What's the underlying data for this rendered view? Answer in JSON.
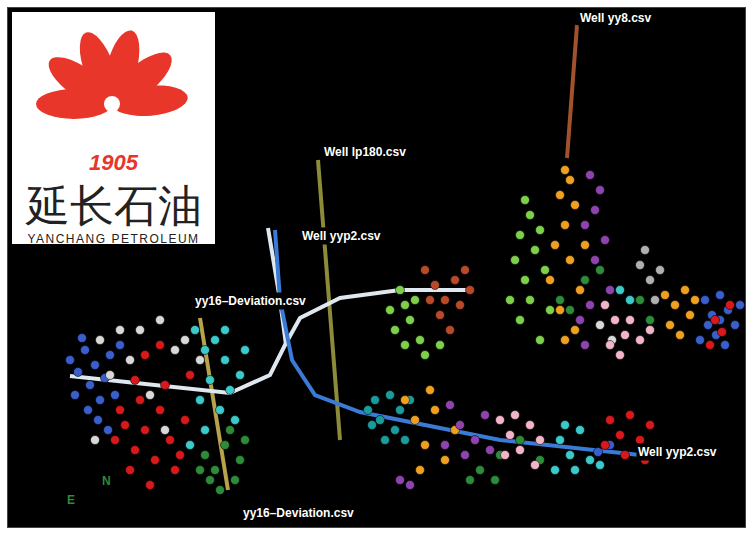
{
  "chart_data": {
    "type": "scatter",
    "xlim": [
      8,
      745
    ],
    "ylim": [
      527,
      8
    ],
    "tick_labels": false,
    "grid": false,
    "marker": "circle",
    "series": [
      {
        "type": "scatter",
        "color": "#3a5fcd",
        "x": [
          70,
          78,
          85,
          90,
          95,
          100,
          105,
          110,
          88,
          98,
          115,
          75,
          120,
          108,
          82,
          705,
          712,
          720,
          728,
          735,
          716,
          725,
          708,
          740,
          700,
          720,
          598,
          610
        ],
        "y": [
          360,
          372,
          350,
          385,
          365,
          400,
          378,
          355,
          410,
          420,
          395,
          395,
          345,
          430,
          338,
          300,
          315,
          295,
          310,
          325,
          335,
          345,
          325,
          305,
          340,
          320,
          452,
          445
        ]
      },
      {
        "type": "scatter",
        "color": "#d7191c",
        "x": [
          115,
          125,
          135,
          145,
          155,
          160,
          170,
          130,
          150,
          140,
          175,
          165,
          185,
          120,
          180,
          145,
          160,
          190,
          135,
          715,
          722,
          710,
          730,
          610,
          620,
          630,
          640,
          625,
          650,
          605,
          645
        ],
        "y": [
          440,
          425,
          450,
          430,
          460,
          410,
          440,
          470,
          485,
          400,
          470,
          385,
          420,
          410,
          455,
          355,
          345,
          375,
          380,
          320,
          332,
          345,
          305,
          420,
          435,
          415,
          440,
          455,
          425,
          445,
          460
        ]
      },
      {
        "type": "scatter",
        "color": "#d8d8d8",
        "x": [
          100,
          120,
          140,
          160,
          130,
          175,
          110,
          150,
          185,
          200,
          95,
          165,
          600,
          612
        ],
        "y": [
          340,
          330,
          330,
          320,
          360,
          350,
          375,
          395,
          340,
          360,
          440,
          430,
          325,
          340
        ]
      },
      {
        "type": "scatter",
        "color": "#3cc9c9",
        "x": [
          195,
          205,
          215,
          225,
          210,
          230,
          240,
          200,
          220,
          235,
          190,
          245,
          225,
          205,
          560,
          570,
          580,
          590,
          575,
          600,
          555,
          565,
          620,
          630
        ],
        "y": [
          330,
          350,
          340,
          360,
          380,
          390,
          375,
          400,
          410,
          420,
          445,
          350,
          330,
          430,
          440,
          455,
          430,
          460,
          470,
          465,
          470,
          425,
          290,
          300
        ]
      },
      {
        "type": "scatter",
        "color": "#1a9c9c",
        "x": [
          368,
          375,
          380,
          390,
          395,
          385,
          372,
          400,
          405,
          410
        ],
        "y": [
          410,
          400,
          420,
          395,
          430,
          440,
          425,
          410,
          440,
          400
        ]
      },
      {
        "type": "scatter",
        "color": "#2e8b3a",
        "x": [
          205,
          215,
          225,
          235,
          220,
          240,
          210,
          245,
          230,
          200,
          560,
          570,
          585,
          600,
          640,
          650,
          480,
          495,
          520,
          540,
          500,
          470
        ],
        "y": [
          455,
          470,
          445,
          480,
          490,
          460,
          480,
          440,
          430,
          470,
          300,
          310,
          280,
          270,
          300,
          320,
          470,
          480,
          440,
          460,
          455,
          480
        ]
      },
      {
        "type": "scatter",
        "color": "#7ed04a",
        "x": [
          400,
          405,
          410,
          415,
          420,
          395,
          425,
          405,
          390,
          440,
          525,
          530,
          520,
          535,
          540,
          545,
          525,
          530,
          515,
          550,
          520,
          540,
          510
        ],
        "y": [
          290,
          305,
          320,
          300,
          340,
          330,
          355,
          345,
          310,
          345,
          200,
          215,
          235,
          250,
          230,
          270,
          280,
          300,
          260,
          310,
          320,
          340,
          300
        ]
      },
      {
        "type": "scatter",
        "color": "#f0a020",
        "x": [
          565,
          570,
          560,
          575,
          565,
          555,
          570,
          580,
          560,
          565,
          575,
          550,
          585,
          665,
          675,
          685,
          690,
          670,
          695,
          680,
          405,
          415,
          425,
          435,
          445,
          420,
          455,
          430
        ],
        "y": [
          170,
          180,
          195,
          205,
          225,
          245,
          260,
          290,
          310,
          340,
          330,
          280,
          245,
          295,
          305,
          290,
          315,
          325,
          300,
          335,
          400,
          420,
          445,
          410,
          460,
          470,
          430,
          390
        ]
      },
      {
        "type": "scatter",
        "color": "#8e44ad",
        "x": [
          590,
          600,
          595,
          585,
          605,
          595,
          580,
          590,
          610,
          585,
          450,
          460,
          475,
          465,
          485,
          490,
          445,
          400,
          410
        ],
        "y": [
          175,
          190,
          210,
          225,
          240,
          260,
          320,
          305,
          290,
          345,
          405,
          425,
          440,
          455,
          415,
          450,
          445,
          480,
          485
        ]
      },
      {
        "type": "scatter",
        "color": "#f2b5c8",
        "x": [
          605,
          615,
          625,
          610,
          630,
          640,
          620,
          650,
          500,
          510,
          520,
          530,
          540,
          505,
          535,
          515
        ],
        "y": [
          305,
          320,
          335,
          345,
          320,
          340,
          355,
          330,
          420,
          435,
          450,
          425,
          440,
          455,
          465,
          415
        ]
      },
      {
        "type": "scatter",
        "color": "#b84a2a",
        "x": [
          425,
          435,
          445,
          455,
          440,
          460,
          470,
          450,
          430,
          465
        ],
        "y": [
          270,
          285,
          300,
          280,
          315,
          305,
          290,
          330,
          300,
          270
        ]
      },
      {
        "type": "scatter",
        "color": "#b0b0b0",
        "x": [
          640,
          650,
          655,
          645,
          660
        ],
        "y": [
          265,
          280,
          300,
          250,
          270
        ]
      },
      {
        "type": "line",
        "color": "#a0522d",
        "line_style": "solid",
        "x": [
          577,
          567
        ],
        "y": [
          25,
          158
        ]
      },
      {
        "type": "line",
        "color": "#8b8b3a",
        "line_style": "solid",
        "x": [
          318,
          340
        ],
        "y": [
          160,
          440
        ]
      },
      {
        "type": "line",
        "color": "#b8a24a",
        "line_style": "solid",
        "x": [
          200,
          228
        ],
        "y": [
          318,
          490
        ]
      },
      {
        "type": "line",
        "color": "#dfe8ef",
        "line_style": "solid",
        "x": [
          70,
          150,
          230,
          270,
          285,
          300,
          340,
          400,
          470
        ],
        "y": [
          376,
          385,
          393,
          375,
          345,
          318,
          298,
          290,
          290
        ]
      },
      {
        "type": "line",
        "color": "#dfe8ef",
        "line_style": "solid",
        "x": [
          268,
          280,
          286
        ],
        "y": [
          228,
          300,
          345
        ]
      },
      {
        "type": "line",
        "color": "#3a7bd5",
        "line_style": "solid",
        "x": [
          275,
          280,
          292,
          315,
          360,
          400,
          500,
          640
        ],
        "y": [
          230,
          300,
          360,
          395,
          412,
          420,
          440,
          455
        ]
      }
    ],
    "annotations": [
      {
        "text": "Well yy8.csv",
        "x": 578,
        "y": 18,
        "color": "#ffffff"
      },
      {
        "text": "Well lp180.csv",
        "x": 322,
        "y": 152,
        "color": "#ffffff"
      },
      {
        "text": "Well yyp2.csv",
        "x": 300,
        "y": 236,
        "color": "#ffffff"
      },
      {
        "text": "yy16–Deviation.csv",
        "x": 193,
        "y": 301,
        "color": "#ffffff"
      },
      {
        "text": "Well yyp2.csv",
        "x": 636,
        "y": 452,
        "color": "#ffffff"
      },
      {
        "text": "yy16–Deviation.csv",
        "x": 241,
        "y": 513,
        "color": "#ffffff"
      },
      {
        "text": "E",
        "x": 65,
        "y": 500,
        "color": "#2e8b3a"
      },
      {
        "text": "N",
        "x": 100,
        "y": 481,
        "color": "#2e8b3a"
      }
    ]
  },
  "logo": {
    "year": "1905",
    "name": "延长石油",
    "name_en": "YANCHANG PETROLEUM"
  }
}
